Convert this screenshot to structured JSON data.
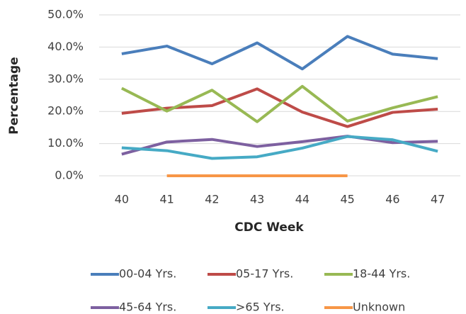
{
  "chart_data": {
    "type": "line",
    "x_label": "CDC Week",
    "y_label": "Percentage",
    "categories": [
      "40",
      "41",
      "42",
      "43",
      "44",
      "45",
      "46",
      "47"
    ],
    "series": [
      {
        "name": "00-04 Yrs.",
        "color": "#4a7ebb",
        "values": [
          37.9,
          40.3,
          34.8,
          41.3,
          33.2,
          43.3,
          37.8,
          36.4
        ]
      },
      {
        "name": "05-17 Yrs.",
        "color": "#be4b48",
        "values": [
          19.4,
          21.0,
          21.8,
          27.0,
          19.8,
          15.3,
          19.7,
          20.7
        ]
      },
      {
        "name": "18-44 Yrs.",
        "color": "#98b954",
        "values": [
          27.2,
          20.1,
          26.6,
          16.8,
          27.8,
          17.0,
          21.1,
          24.6
        ]
      },
      {
        "name": "45-64 Yrs.",
        "color": "#7d60a0",
        "values": [
          6.7,
          10.5,
          11.3,
          9.1,
          10.6,
          12.3,
          10.3,
          10.7
        ]
      },
      {
        "name": ">65 Yrs.",
        "color": "#46aac5",
        "values": [
          8.7,
          7.8,
          5.4,
          5.9,
          8.6,
          12.2,
          11.2,
          7.6
        ]
      },
      {
        "name": "Unknown",
        "color": "#f79646",
        "values": [
          null,
          0,
          0,
          0,
          0,
          0,
          null,
          null
        ]
      }
    ],
    "ylim": [
      0,
      50
    ],
    "yticks": [
      {
        "value": 0,
        "label": "0.0%"
      },
      {
        "value": 10,
        "label": "10.0%"
      },
      {
        "value": 20,
        "label": "20.0%"
      },
      {
        "value": 30,
        "label": "30.0%"
      },
      {
        "value": 40,
        "label": "40.0%"
      },
      {
        "value": 50,
        "label": "50.0%"
      }
    ],
    "grid": true,
    "legend": "bottom"
  }
}
